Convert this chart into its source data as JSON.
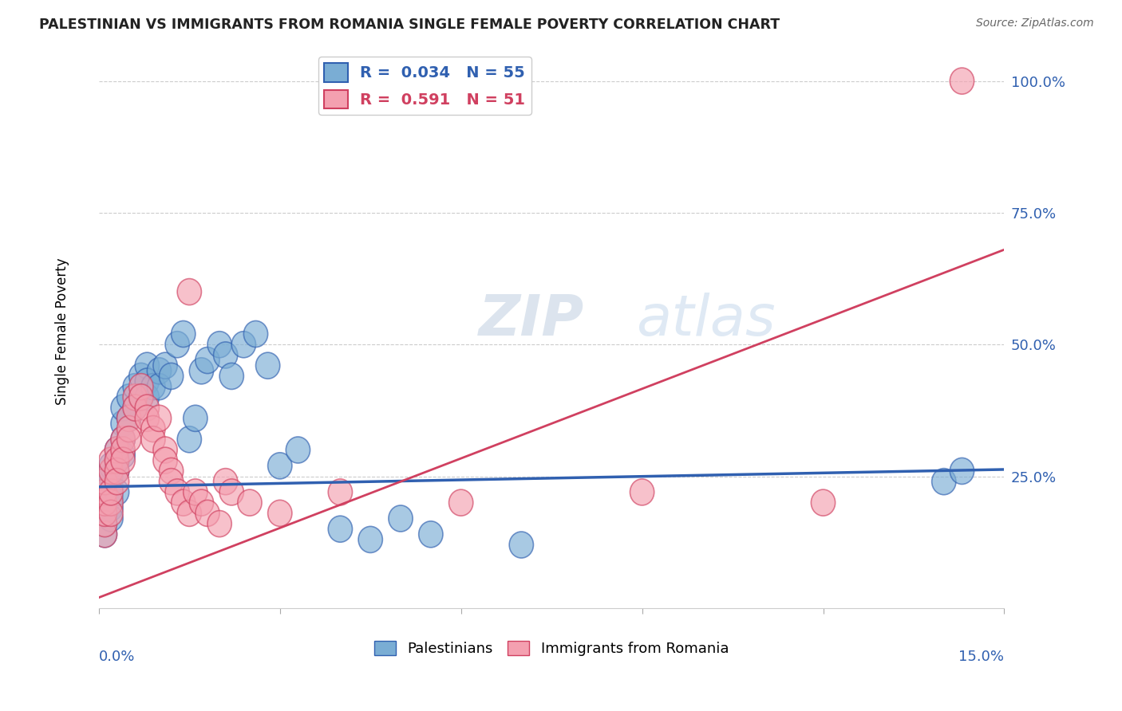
{
  "title": "PALESTINIAN VS IMMIGRANTS FROM ROMANIA SINGLE FEMALE POVERTY CORRELATION CHART",
  "source": "Source: ZipAtlas.com",
  "ylabel": "Single Female Poverty",
  "xlim": [
    0.0,
    0.15
  ],
  "ylim": [
    0.0,
    1.05
  ],
  "yticks": [
    0.25,
    0.5,
    0.75,
    1.0
  ],
  "ytick_labels": [
    "25.0%",
    "50.0%",
    "75.0%",
    "100.0%"
  ],
  "blue_color": "#7aadd4",
  "pink_color": "#f4a0b0",
  "blue_line_color": "#3060b0",
  "pink_line_color": "#d04060",
  "watermark_zip": "ZIP",
  "watermark_atlas": "atlas",
  "blue_trend": [
    0.23,
    0.263
  ],
  "pink_trend": [
    0.02,
    0.68
  ],
  "palestinians_x": [
    0.001,
    0.001,
    0.001,
    0.001,
    0.001,
    0.001,
    0.002,
    0.002,
    0.002,
    0.002,
    0.002,
    0.002,
    0.003,
    0.003,
    0.003,
    0.003,
    0.004,
    0.004,
    0.004,
    0.004,
    0.005,
    0.005,
    0.006,
    0.006,
    0.007,
    0.007,
    0.008,
    0.008,
    0.008,
    0.009,
    0.01,
    0.01,
    0.011,
    0.012,
    0.013,
    0.014,
    0.015,
    0.016,
    0.017,
    0.018,
    0.02,
    0.021,
    0.022,
    0.024,
    0.026,
    0.028,
    0.03,
    0.033,
    0.04,
    0.045,
    0.05,
    0.055,
    0.07,
    0.14,
    0.143
  ],
  "palestinians_y": [
    0.2,
    0.22,
    0.24,
    0.18,
    0.16,
    0.14,
    0.23,
    0.21,
    0.19,
    0.17,
    0.25,
    0.27,
    0.3,
    0.28,
    0.26,
    0.22,
    0.35,
    0.38,
    0.32,
    0.29,
    0.4,
    0.36,
    0.42,
    0.38,
    0.44,
    0.4,
    0.46,
    0.43,
    0.4,
    0.42,
    0.45,
    0.42,
    0.46,
    0.44,
    0.5,
    0.52,
    0.32,
    0.36,
    0.45,
    0.47,
    0.5,
    0.48,
    0.44,
    0.5,
    0.52,
    0.46,
    0.27,
    0.3,
    0.15,
    0.13,
    0.17,
    0.14,
    0.12,
    0.24,
    0.26
  ],
  "romania_x": [
    0.001,
    0.001,
    0.001,
    0.001,
    0.001,
    0.001,
    0.002,
    0.002,
    0.002,
    0.002,
    0.002,
    0.003,
    0.003,
    0.003,
    0.003,
    0.004,
    0.004,
    0.004,
    0.005,
    0.005,
    0.005,
    0.006,
    0.006,
    0.007,
    0.007,
    0.008,
    0.008,
    0.009,
    0.009,
    0.01,
    0.011,
    0.011,
    0.012,
    0.012,
    0.013,
    0.014,
    0.015,
    0.015,
    0.016,
    0.017,
    0.018,
    0.02,
    0.021,
    0.022,
    0.025,
    0.03,
    0.04,
    0.06,
    0.09,
    0.12,
    0.143
  ],
  "romania_y": [
    0.14,
    0.16,
    0.18,
    0.2,
    0.22,
    0.24,
    0.2,
    0.18,
    0.22,
    0.26,
    0.28,
    0.3,
    0.28,
    0.26,
    0.24,
    0.32,
    0.3,
    0.28,
    0.36,
    0.34,
    0.32,
    0.4,
    0.38,
    0.42,
    0.4,
    0.38,
    0.36,
    0.34,
    0.32,
    0.36,
    0.3,
    0.28,
    0.26,
    0.24,
    0.22,
    0.2,
    0.18,
    0.6,
    0.22,
    0.2,
    0.18,
    0.16,
    0.24,
    0.22,
    0.2,
    0.18,
    0.22,
    0.2,
    0.22,
    0.2,
    1.0
  ]
}
